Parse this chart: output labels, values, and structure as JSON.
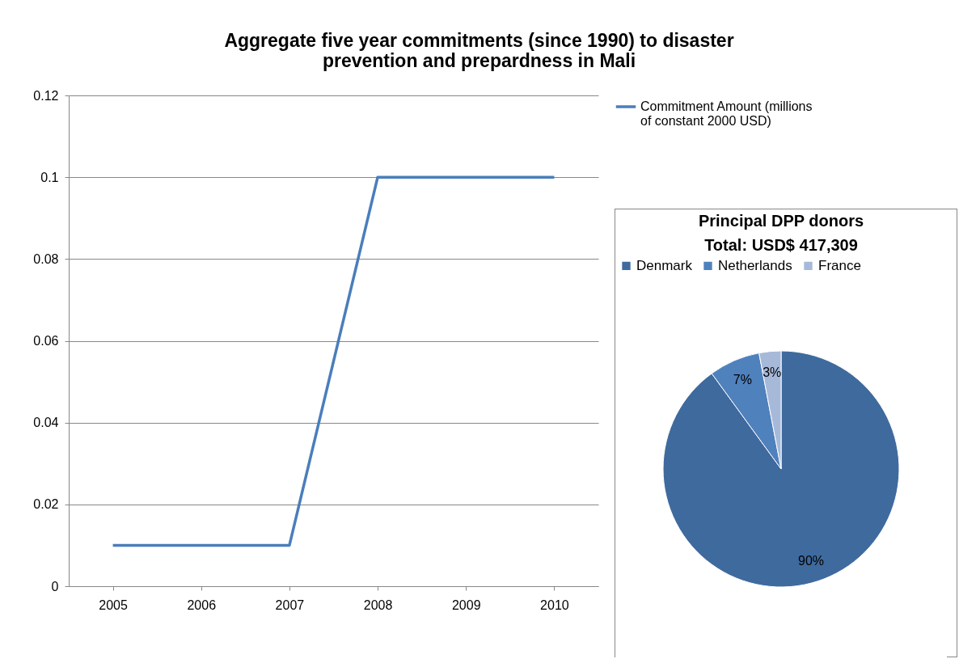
{
  "chart_data": [
    {
      "type": "line",
      "title": "Aggregate five year commitments (since 1990) to disaster prevention and prepardness in Mali",
      "categories": [
        "2005",
        "2006",
        "2007",
        "2008",
        "2009",
        "2010"
      ],
      "series": [
        {
          "name": "Commitment Amount (millions of constant 2000 USD)",
          "color": "#4a7ebb",
          "values": [
            0.01,
            0.01,
            0.01,
            0.1,
            0.1,
            0.1
          ]
        }
      ],
      "ylim": [
        0,
        0.12
      ],
      "yticks": [
        0,
        0.02,
        0.04,
        0.06,
        0.08,
        0.1,
        0.12
      ],
      "grid": "y",
      "legend": "top right"
    },
    {
      "type": "pie",
      "title": "Principal DPP donors",
      "subtitle": "Total: USD$ 417,309",
      "categories": [
        "Denmark",
        "Netherlands",
        "France"
      ],
      "values": [
        90,
        7,
        3
      ],
      "colors": [
        "#3f6a9e",
        "#4f81bd",
        "#a6b9d9"
      ],
      "value_labels": [
        "90%",
        "7%",
        "3%"
      ],
      "legend": "top"
    }
  ]
}
